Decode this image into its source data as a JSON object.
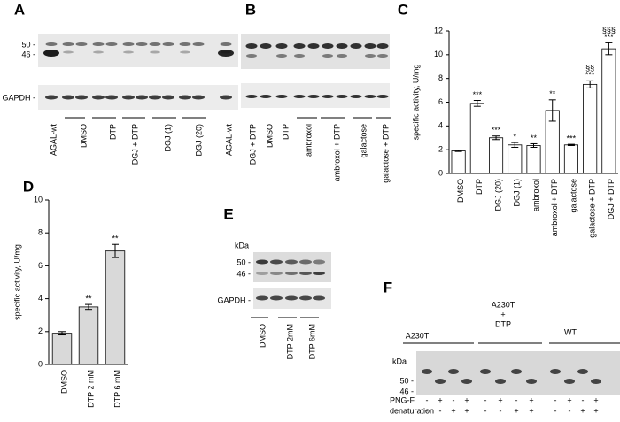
{
  "panel_labels": [
    "A",
    "B",
    "C",
    "D",
    "E",
    "F"
  ],
  "blot_a": {
    "marker_labels": [
      "50 -",
      "46 -"
    ],
    "loading_label": "GAPDH -",
    "lanes": [
      "AGAL-wt",
      "DMSO",
      "DTP",
      "DGJ + DTP",
      "DGJ (1)",
      "DGJ (20)",
      "AGAL-wt"
    ]
  },
  "blot_b": {
    "lanes": [
      "DGJ + DTP",
      "DMSO",
      "DTP",
      "ambroxol",
      "ambroxol + DTP",
      "galactose",
      "galactose + DTP"
    ]
  },
  "blot_e": {
    "unit": "kDa",
    "marker_labels": [
      "50 -",
      "46 -"
    ],
    "loading_label": "GAPDH -",
    "lanes": [
      "DMSO",
      "DTP 2mM",
      "DTP 6mM"
    ]
  },
  "blot_f": {
    "unit": "kDa",
    "marker_labels": [
      "50 -",
      "46 -"
    ],
    "groups": [
      [
        "A230T"
      ],
      [
        "A230T",
        "+",
        "DTP"
      ],
      [
        "WT"
      ]
    ],
    "rows": [
      {
        "label": "PNG-F",
        "signs": [
          "-",
          "+",
          "-",
          "+",
          "-",
          "+",
          "-",
          "+",
          "-",
          "+",
          "-",
          "+"
        ]
      },
      {
        "label": "denaturation",
        "signs": [
          "-",
          "-",
          "+",
          "+",
          "-",
          "-",
          "+",
          "+",
          "-",
          "-",
          "+",
          "+"
        ]
      }
    ]
  },
  "chart_data": [
    {
      "type": "bar",
      "y_label": "specific activity, U/mg",
      "categories": [
        "DMSO",
        "DTP",
        "DGJ (20)",
        "DGJ (1)",
        "ambroxol",
        "ambroxol + DTP",
        "galactose",
        "galactose + DTP",
        "DGJ + DTP"
      ],
      "values": [
        1.9,
        5.9,
        3.0,
        2.4,
        2.35,
        5.3,
        2.4,
        7.5,
        10.5
      ],
      "errors": [
        0.05,
        0.25,
        0.15,
        0.2,
        0.15,
        0.9,
        0.05,
        0.3,
        0.5
      ],
      "annotations": [
        null,
        [
          "***"
        ],
        [
          "***"
        ],
        [
          "*"
        ],
        [
          "**"
        ],
        [
          "**"
        ],
        [
          "***"
        ],
        [
          "§§",
          "***"
        ],
        [
          "§§§",
          "***"
        ]
      ],
      "color": "#ffffff",
      "ylim": [
        0,
        12
      ],
      "yticks": [
        0,
        2,
        4,
        6,
        8,
        10,
        12
      ]
    },
    {
      "type": "bar",
      "y_label": "specific activity, U/mg",
      "categories": [
        "DMSO",
        "DTP 2 mM",
        "DTP 6 mM"
      ],
      "values": [
        1.9,
        3.5,
        6.9
      ],
      "errors": [
        0.1,
        0.15,
        0.4
      ],
      "annotations": [
        null,
        [
          "**"
        ],
        [
          "**"
        ]
      ],
      "color": "#d9d9d9",
      "ylim": [
        0,
        10
      ],
      "yticks": [
        0,
        2,
        4,
        6,
        8,
        10
      ]
    }
  ]
}
